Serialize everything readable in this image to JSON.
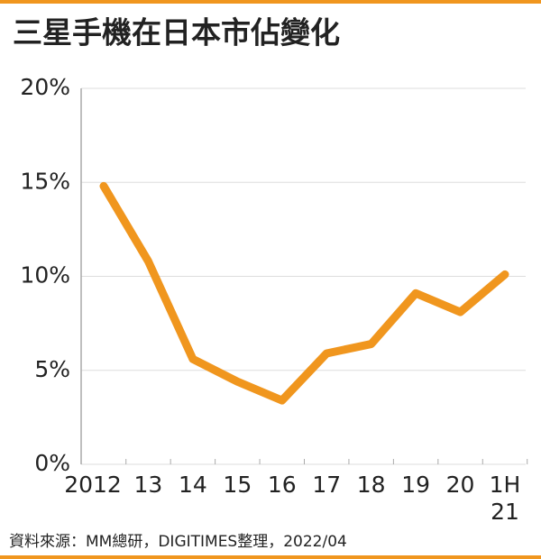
{
  "chart_data": {
    "type": "line",
    "title": "三星手機在日本市佔變化",
    "categories": [
      "2012",
      "13",
      "14",
      "15",
      "16",
      "17",
      "18",
      "19",
      "20",
      "1H 21"
    ],
    "series": [
      {
        "name": "Samsung",
        "color": "#f0961e",
        "values": [
          14.8,
          10.8,
          5.6,
          4.4,
          3.4,
          5.9,
          6.4,
          9.1,
          8.1,
          10.1
        ]
      }
    ],
    "ylim": [
      0,
      20
    ],
    "yticks": [
      {
        "value": 0,
        "label": "0%"
      },
      {
        "value": 5,
        "label": "5%"
      },
      {
        "value": 10,
        "label": "10%"
      },
      {
        "value": 15,
        "label": "15%"
      },
      {
        "value": 20,
        "label": "20%"
      }
    ],
    "grid": true,
    "source": "資料來源：MM總研，DIGITIMES整理，2022/04"
  }
}
